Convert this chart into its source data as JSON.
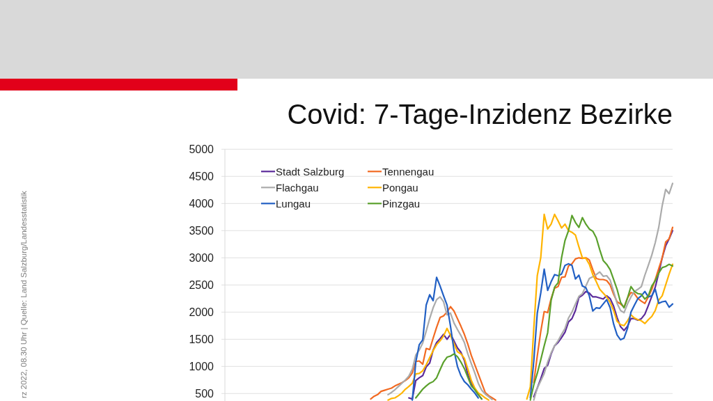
{
  "chart_data": {
    "type": "line",
    "title": "Covid: 7-Tage-Inzidenz Bezirke",
    "annotations": [
      "rz 2022, 08.30 Uhr | Quelle: Land Salzburg/Landesstatistik"
    ],
    "categories": [
      null,
      null,
      null,
      null,
      null,
      null,
      null,
      null,
      null,
      null,
      null,
      null,
      null,
      null,
      null,
      null,
      null,
      null,
      null,
      null,
      null,
      null,
      null,
      null,
      null,
      null,
      null,
      null,
      null,
      null,
      null,
      null,
      null,
      null,
      null,
      null,
      null,
      null,
      null,
      null,
      null,
      null,
      null,
      null,
      null,
      null,
      null,
      null,
      null,
      null,
      null,
      null,
      null,
      null,
      null,
      null,
      null,
      null,
      null,
      null,
      null,
      null,
      null,
      null,
      null,
      null,
      null,
      null,
      null,
      null,
      null,
      null,
      null,
      null,
      null,
      null,
      null,
      null,
      null,
      null,
      null,
      null,
      null,
      null,
      null,
      null,
      null,
      null,
      null,
      null,
      null,
      null,
      null,
      null,
      null,
      null,
      null,
      null,
      null,
      null,
      null,
      null,
      null,
      null,
      null,
      null,
      null,
      null,
      null,
      null,
      null,
      null,
      null,
      null,
      null,
      null,
      null,
      null,
      null,
      null,
      null,
      null,
      null,
      null,
      null,
      null,
      null,
      null,
      null,
      null
    ],
    "series": [
      {
        "name": "Stadt Salzburg",
        "color": "#5b2a9a",
        "values": [
          null,
          null,
          null,
          null,
          null,
          null,
          null,
          null,
          null,
          null,
          null,
          null,
          null,
          null,
          null,
          null,
          null,
          null,
          null,
          null,
          null,
          null,
          null,
          null,
          null,
          null,
          null,
          null,
          null,
          null,
          null,
          null,
          null,
          null,
          null,
          null,
          null,
          null,
          null,
          null,
          null,
          null,
          null,
          null,
          null,
          null,
          null,
          null,
          null,
          null,
          null,
          null,
          null,
          420,
          400,
          740,
          790,
          830,
          990,
          1060,
          1300,
          1440,
          1510,
          1590,
          1500,
          1590,
          1470,
          1340,
          1260,
          1110,
          850,
          680,
          580,
          480,
          400,
          null,
          null,
          null,
          null,
          null,
          null,
          null,
          null,
          null,
          null,
          null,
          null,
          null,
          null,
          440,
          600,
          770,
          960,
          1020,
          1230,
          1380,
          1440,
          1530,
          1630,
          1820,
          1880,
          2030,
          2270,
          2310,
          2380,
          2350,
          2280,
          2280,
          2260,
          2240,
          2300,
          2250,
          2110,
          1900,
          1730,
          1660,
          1740,
          1880,
          1880,
          1850,
          1880,
          1960,
          2120,
          2290,
          2460,
          2720,
          3000,
          3220,
          3350,
          3500
        ]
      },
      {
        "name": "Tennengau",
        "color": "#f26a21",
        "values": [
          null,
          null,
          null,
          null,
          null,
          null,
          null,
          null,
          null,
          null,
          null,
          null,
          null,
          null,
          null,
          null,
          null,
          null,
          null,
          null,
          null,
          null,
          null,
          null,
          null,
          null,
          null,
          null,
          null,
          null,
          null,
          null,
          null,
          null,
          null,
          null,
          null,
          null,
          null,
          null,
          null,
          null,
          400,
          450,
          480,
          540,
          560,
          580,
          600,
          640,
          670,
          700,
          740,
          790,
          880,
          1090,
          1100,
          1040,
          1330,
          1310,
          1520,
          1720,
          1900,
          1930,
          2000,
          2100,
          2020,
          1880,
          1740,
          1590,
          1410,
          1200,
          1030,
          860,
          690,
          520,
          460,
          420,
          380,
          null,
          null,
          null,
          null,
          null,
          null,
          null,
          null,
          null,
          null,
          700,
          1190,
          1640,
          2010,
          1990,
          2250,
          2440,
          2470,
          2640,
          2650,
          2850,
          2890,
          2980,
          3000,
          2990,
          3000,
          2960,
          2780,
          2620,
          2600,
          2600,
          2580,
          2500,
          2330,
          2190,
          2150,
          2090,
          2260,
          2360,
          2340,
          2250,
          2200,
          2160,
          2280,
          2420,
          2600,
          2800,
          3000,
          3290,
          3350,
          3560
        ]
      },
      {
        "name": "Flachgau",
        "color": "#ababab",
        "values": [
          null,
          null,
          null,
          null,
          null,
          null,
          null,
          null,
          null,
          null,
          null,
          null,
          null,
          null,
          null,
          null,
          null,
          null,
          null,
          null,
          null,
          null,
          null,
          null,
          null,
          null,
          null,
          null,
          null,
          null,
          null,
          null,
          null,
          null,
          null,
          null,
          null,
          null,
          null,
          null,
          null,
          null,
          null,
          null,
          null,
          null,
          null,
          480,
          520,
          570,
          630,
          690,
          750,
          820,
          950,
          1210,
          1300,
          1430,
          1650,
          1880,
          2080,
          2230,
          2280,
          2190,
          1950,
          1980,
          1800,
          1680,
          1570,
          1440,
          1230,
          1050,
          880,
          690,
          560,
          490,
          440,
          390,
          null,
          null,
          null,
          null,
          null,
          null,
          null,
          null,
          null,
          null,
          null,
          380,
          600,
          730,
          870,
          1080,
          1250,
          1380,
          1470,
          1590,
          1700,
          1890,
          2000,
          2150,
          2290,
          2340,
          2480,
          2620,
          2650,
          2690,
          2740,
          2660,
          2670,
          2590,
          2380,
          2160,
          2030,
          1990,
          2150,
          2280,
          2380,
          2420,
          2470,
          2680,
          2860,
          3050,
          3280,
          3560,
          3960,
          4260,
          4180,
          4370
        ]
      },
      {
        "name": "Pongau",
        "color": "#ffb400",
        "values": [
          null,
          null,
          null,
          null,
          null,
          null,
          null,
          null,
          null,
          null,
          null,
          null,
          null,
          null,
          null,
          null,
          null,
          null,
          null,
          null,
          null,
          null,
          null,
          null,
          null,
          null,
          null,
          null,
          null,
          null,
          null,
          null,
          null,
          null,
          null,
          null,
          null,
          null,
          null,
          null,
          null,
          null,
          null,
          null,
          null,
          null,
          null,
          380,
          410,
          420,
          460,
          510,
          580,
          630,
          690,
          860,
          870,
          920,
          1030,
          1160,
          1290,
          1400,
          1470,
          1560,
          1700,
          1570,
          1420,
          1270,
          1230,
          1150,
          950,
          740,
          600,
          510,
          470,
          420,
          380,
          null,
          null,
          null,
          null,
          null,
          null,
          null,
          null,
          null,
          null,
          400,
          620,
          1700,
          2670,
          3000,
          3800,
          3530,
          3620,
          3800,
          3680,
          3550,
          3620,
          3500,
          3470,
          3420,
          3200,
          3000,
          2990,
          2880,
          2690,
          2560,
          2420,
          2350,
          2280,
          2180,
          2030,
          1830,
          1770,
          1750,
          1840,
          1950,
          1890,
          1860,
          1840,
          1790,
          1860,
          1920,
          2030,
          2220,
          2300,
          2500,
          2700,
          2880
        ]
      },
      {
        "name": "Lungau",
        "color": "#2260c4",
        "values": [
          null,
          null,
          null,
          null,
          null,
          null,
          null,
          null,
          null,
          null,
          null,
          null,
          null,
          null,
          null,
          null,
          null,
          null,
          null,
          null,
          null,
          null,
          null,
          null,
          null,
          null,
          null,
          null,
          null,
          null,
          null,
          null,
          null,
          null,
          null,
          null,
          null,
          null,
          null,
          null,
          null,
          null,
          null,
          null,
          null,
          null,
          null,
          null,
          null,
          null,
          null,
          null,
          null,
          null,
          380,
          1080,
          1400,
          1490,
          2130,
          2320,
          2210,
          2640,
          2480,
          2300,
          2130,
          1740,
          1300,
          1000,
          830,
          720,
          660,
          580,
          510,
          420,
          null,
          null,
          null,
          null,
          null,
          null,
          null,
          null,
          null,
          null,
          null,
          null,
          null,
          null,
          420,
          1100,
          1980,
          2350,
          2790,
          2400,
          2560,
          2690,
          2670,
          2700,
          2860,
          2890,
          2860,
          2610,
          2680,
          2480,
          2450,
          2300,
          2020,
          2080,
          2070,
          2150,
          2230,
          2080,
          1780,
          1580,
          1490,
          1520,
          1700,
          2000,
          2130,
          2250,
          2300,
          2380,
          2280,
          2300,
          2420,
          2160,
          2190,
          2200,
          2090,
          2150
        ]
      },
      {
        "name": "Pinzgau",
        "color": "#5aa02c",
        "values": [
          null,
          null,
          null,
          null,
          null,
          null,
          null,
          null,
          null,
          null,
          null,
          null,
          null,
          null,
          null,
          null,
          null,
          null,
          null,
          null,
          null,
          null,
          null,
          null,
          null,
          null,
          null,
          null,
          null,
          null,
          null,
          null,
          null,
          null,
          null,
          null,
          null,
          null,
          null,
          null,
          null,
          null,
          null,
          null,
          null,
          null,
          null,
          null,
          null,
          null,
          null,
          null,
          null,
          null,
          null,
          420,
          500,
          580,
          640,
          690,
          720,
          790,
          940,
          1080,
          1170,
          1190,
          1230,
          1180,
          1080,
          960,
          800,
          640,
          570,
          480,
          400,
          null,
          null,
          null,
          null,
          null,
          null,
          null,
          null,
          null,
          null,
          null,
          null,
          null,
          380,
          660,
          870,
          1120,
          1380,
          1620,
          2220,
          2460,
          2540,
          3000,
          3320,
          3500,
          3780,
          3650,
          3560,
          3740,
          3620,
          3530,
          3490,
          3370,
          3150,
          2950,
          2880,
          2780,
          2600,
          2420,
          2180,
          2080,
          2260,
          2470,
          2380,
          2340,
          2330,
          2240,
          2300,
          2480,
          2580,
          2720,
          2820,
          2840,
          2880,
          2850
        ]
      }
    ],
    "ylim": [
      360,
      5000
    ],
    "yticks": [
      500,
      1000,
      1500,
      2000,
      2500,
      3000,
      3500,
      4000,
      4500,
      5000
    ],
    "grid": "y",
    "legend": "top left",
    "tick_labels": "y"
  }
}
